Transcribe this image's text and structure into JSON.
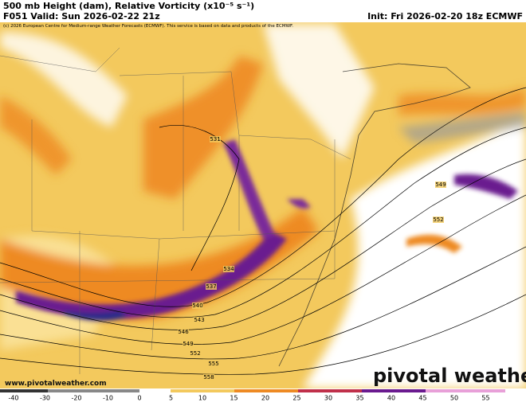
{
  "header": {
    "title": "500 mb Height (dam), Relative Vorticity (x10⁻⁵ s⁻¹)",
    "valid": "F051 Valid: Sun 2026-02-22 21z",
    "init": "Init: Fri 2026-02-20 18z ECMWF",
    "copyright": "(c) 2026 European Centre for Medium-range Weather Forecasts (ECMWF). This service is based on data and products of the ECMWF."
  },
  "map": {
    "contour_labels": [
      531,
      534,
      537,
      540,
      543,
      546,
      549,
      552,
      555,
      558,
      549,
      552
    ]
  },
  "colorbar": {
    "ticks": [
      -40,
      -30,
      -20,
      -10,
      0,
      5,
      10,
      15,
      20,
      25,
      30,
      35,
      40,
      45,
      50,
      55
    ]
  },
  "footer": {
    "url": "www.pivotalweather.com",
    "watermark": "pivotal weather"
  }
}
